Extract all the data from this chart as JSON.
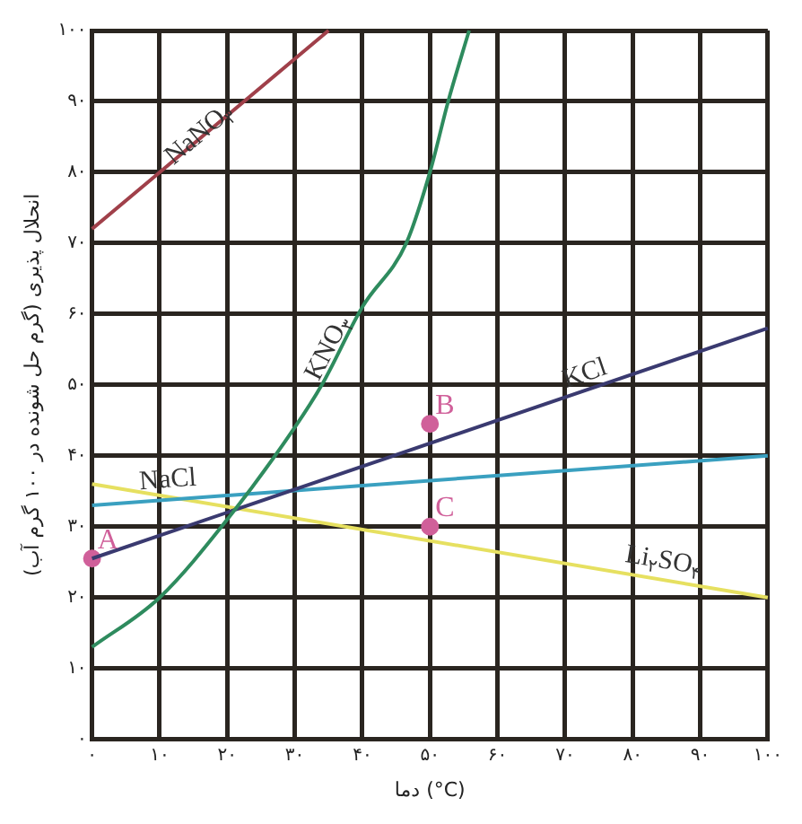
{
  "chart_data": {
    "type": "line",
    "xlabel": "دما (°C)",
    "ylabel": "انحلال پذیری (گرم حل شونده در ۱۰۰ گرم آب)",
    "xlim": [
      0,
      100
    ],
    "ylim": [
      0,
      100
    ],
    "xticks": [
      {
        "value": 0,
        "label": "۰"
      },
      {
        "value": 10,
        "label": "۱۰"
      },
      {
        "value": 20,
        "label": "۲۰"
      },
      {
        "value": 30,
        "label": "۳۰"
      },
      {
        "value": 40,
        "label": "۴۰"
      },
      {
        "value": 50,
        "label": "۵۰"
      },
      {
        "value": 60,
        "label": "۶۰"
      },
      {
        "value": 70,
        "label": "۷۰"
      },
      {
        "value": 80,
        "label": "۸۰"
      },
      {
        "value": 90,
        "label": "۹۰"
      },
      {
        "value": 100,
        "label": "۱۰۰"
      }
    ],
    "yticks": [
      {
        "value": 0,
        "label": "۰"
      },
      {
        "value": 10,
        "label": "۱۰"
      },
      {
        "value": 20,
        "label": "۲۰"
      },
      {
        "value": 30,
        "label": "۳۰"
      },
      {
        "value": 40,
        "label": "۴۰"
      },
      {
        "value": 50,
        "label": "۵۰"
      },
      {
        "value": 60,
        "label": "۶۰"
      },
      {
        "value": 70,
        "label": "۷۰"
      },
      {
        "value": 80,
        "label": "۸۰"
      },
      {
        "value": 90,
        "label": "۹۰"
      },
      {
        "value": 100,
        "label": "۱۰۰"
      }
    ],
    "grid": true,
    "legend": false,
    "marker": "none",
    "series": [
      {
        "name": "NaNO$_{۳}$",
        "color": "#a0404a",
        "x": [
          0,
          10,
          35
        ],
        "values": [
          72,
          80,
          100
        ]
      },
      {
        "name": "KNO$_{۳}$",
        "color": "#2e8b5e",
        "x": [
          0,
          10,
          20,
          30,
          34,
          40,
          46.5,
          50,
          52.7,
          55.8
        ],
        "values": [
          13,
          20,
          31,
          44,
          50,
          61,
          70,
          80,
          90,
          100
        ]
      },
      {
        "name": "KCl",
        "color": "#3a3a70",
        "x": [
          0,
          100
        ],
        "values": [
          25.5,
          58
        ]
      },
      {
        "name": "NaCl",
        "color": "#3aa0c0",
        "x": [
          0,
          100
        ],
        "values": [
          33,
          40
        ]
      },
      {
        "name": "Li$_{۲}$SO$_{۴}$",
        "color": "#e6e060",
        "x": [
          0,
          100
        ],
        "values": [
          36,
          20
        ]
      },
      {
        "type": "scatter",
        "color": "#d0609a",
        "marker": "circle",
        "x": [
          0,
          50,
          50
        ],
        "values": [
          25.5,
          44.5,
          30
        ],
        "value_labels": [
          "A",
          "B",
          "C"
        ]
      }
    ]
  }
}
